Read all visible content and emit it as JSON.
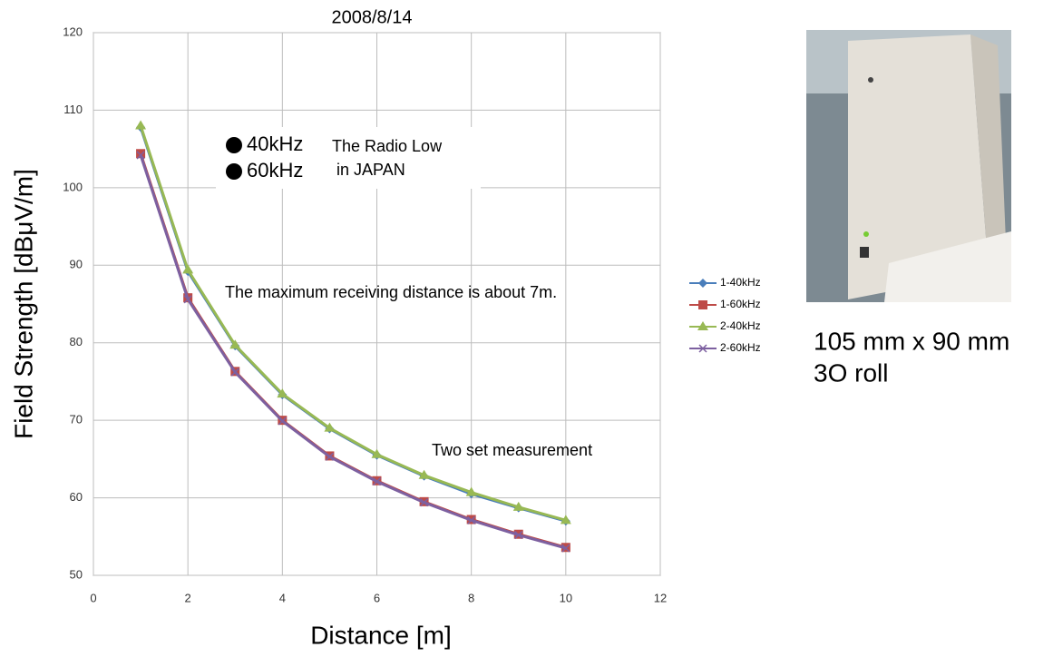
{
  "chart_data": {
    "type": "line",
    "title": "2008/8/14",
    "x_label": "Distance [m]",
    "y_label": "Field Strength [dBμV/m]",
    "x": [
      1,
      2,
      3,
      4,
      5,
      6,
      7,
      8,
      9,
      10
    ],
    "series": [
      {
        "name": "1-40kHz",
        "color": "#4a7ebb",
        "marker": "diamond",
        "values": [
          107.8,
          89.2,
          79.6,
          73.3,
          68.9,
          65.5,
          62.8,
          60.5,
          58.7,
          57.0
        ]
      },
      {
        "name": "1-60kHz",
        "color": "#be4b48",
        "marker": "square",
        "values": [
          104.4,
          85.8,
          76.3,
          70.0,
          65.4,
          62.2,
          59.5,
          57.2,
          55.3,
          53.6
        ]
      },
      {
        "name": "2-40kHz",
        "color": "#98b954",
        "marker": "triangle",
        "values": [
          108.0,
          89.4,
          79.7,
          73.4,
          69.0,
          65.6,
          62.9,
          60.7,
          58.8,
          57.1
        ]
      },
      {
        "name": "2-60kHz",
        "color": "#7d60a0",
        "marker": "x",
        "values": [
          104.2,
          85.6,
          76.2,
          69.9,
          65.3,
          62.1,
          59.4,
          57.1,
          55.2,
          53.5
        ]
      }
    ],
    "xlim": [
      0,
      12
    ],
    "xticks": [
      0,
      2,
      4,
      6,
      8,
      10,
      12
    ],
    "ylim": [
      50,
      120
    ],
    "yticks": [
      50,
      60,
      70,
      80,
      90,
      100,
      110,
      120
    ],
    "grid": true,
    "legend": "right",
    "annotations": {
      "frequencies": [
        "40kHz",
        "60kHz"
      ],
      "radio_law": [
        "The Radio Low",
        " in JAPAN"
      ],
      "max_distance": "The maximum receiving distance is about 7m.",
      "measurement": "Two set measurement"
    }
  },
  "photo_caption": [
    "105 mm x 90 mm",
    "3O roll"
  ]
}
